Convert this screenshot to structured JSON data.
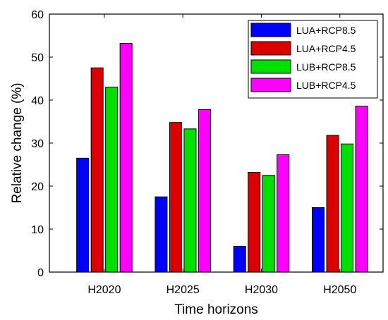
{
  "chart_data": {
    "type": "bar",
    "xlabel": "Time horizons",
    "ylabel": "Relative change (%)",
    "categories": [
      "H2020",
      "H2025",
      "H2030",
      "H2050"
    ],
    "ylim": [
      0,
      60
    ],
    "yticks": [
      0,
      10,
      20,
      30,
      40,
      50,
      60
    ],
    "grid": false,
    "legend_position": "top-right",
    "series": [
      {
        "name": "LUA+RCP8.5",
        "color": "#0000ff",
        "values": [
          26.5,
          17.5,
          6,
          15
        ]
      },
      {
        "name": "LUA+RCP4.5",
        "color": "#dd0000",
        "values": [
          47.5,
          34.8,
          23.2,
          31.8
        ]
      },
      {
        "name": "LUB+RCP8.5",
        "color": "#00e000",
        "values": [
          43,
          33.3,
          22.5,
          29.8
        ]
      },
      {
        "name": "LUB+RCP4.5",
        "color": "#ff00ff",
        "values": [
          53.2,
          37.8,
          27.3,
          38.6
        ]
      }
    ]
  }
}
